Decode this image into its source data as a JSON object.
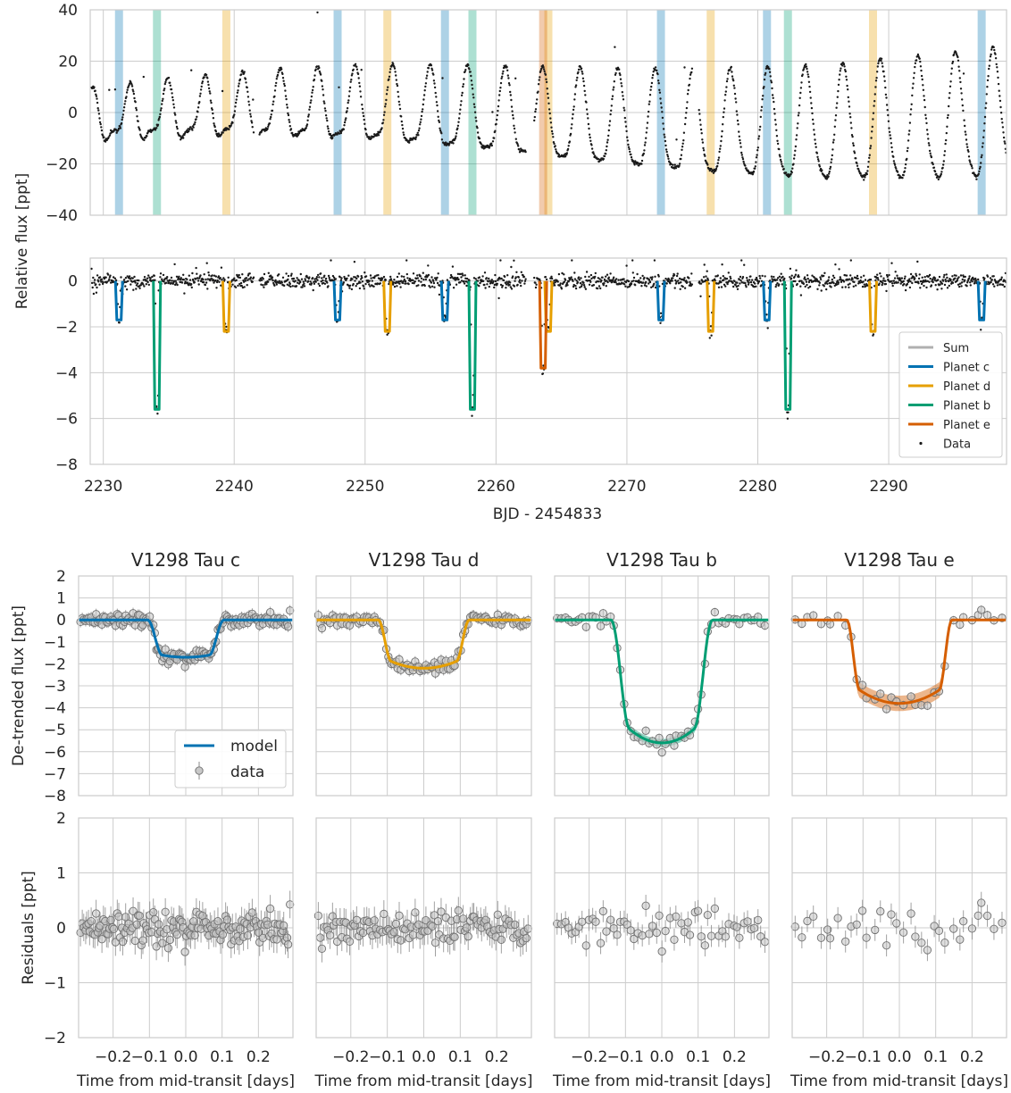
{
  "chart_data": [
    {
      "type": "scatter",
      "panel": "raw-light-curve",
      "ylabel": "Relative flux [ppt]",
      "xlim": [
        2229,
        2299
      ],
      "ylim": [
        -40,
        40
      ],
      "xticks": [
        "2230",
        "2240",
        "2250",
        "2260",
        "2270",
        "2280",
        "2290"
      ],
      "yticks": [
        "40",
        "20",
        "0",
        "−20",
        "−40"
      ],
      "transit_windows": [
        {
          "planet": "c",
          "x": [
            2231.2,
            2247.9,
            2256.1,
            2272.6,
            2280.7,
            2297.1
          ]
        },
        {
          "planet": "b",
          "x": [
            2234.1,
            2258.2,
            2282.3
          ]
        },
        {
          "planet": "d",
          "x": [
            2239.4,
            2251.7,
            2264.0,
            2276.4,
            2288.8
          ]
        },
        {
          "planet": "e",
          "x": [
            2263.6
          ]
        }
      ],
      "series": [
        {
          "name": "Data",
          "description": "quasi-periodic stellar variability, period about 2.9 d"
        }
      ]
    },
    {
      "type": "scatter",
      "panel": "detrended-light-curve",
      "xlabel": "BJD - 2454833",
      "xlim": [
        2229,
        2299
      ],
      "ylim": [
        -8,
        1
      ],
      "xticks": [
        "2230",
        "2240",
        "2250",
        "2260",
        "2270",
        "2280",
        "2290"
      ],
      "yticks": [
        "0",
        "−2",
        "−4",
        "−6",
        "−8"
      ],
      "legend": {
        "position": "lower-right",
        "entries": [
          "Sum",
          "Planet c",
          "Planet d",
          "Planet b",
          "Planet e",
          "Data"
        ]
      },
      "transits": [
        {
          "planet": "c",
          "depth": 1.7,
          "times": [
            2231.2,
            2247.9,
            2256.1,
            2272.6,
            2280.7,
            2297.1
          ]
        },
        {
          "planet": "b",
          "depth": 5.6,
          "times": [
            2234.1,
            2258.2,
            2282.3
          ]
        },
        {
          "planet": "d",
          "depth": 2.2,
          "times": [
            2239.4,
            2251.7,
            2264.0,
            2276.4,
            2288.8
          ]
        },
        {
          "planet": "e",
          "depth": 3.8,
          "times": [
            2263.6
          ]
        }
      ]
    },
    {
      "type": "scatter",
      "panel": "phase-folded-transits",
      "ylabel": "De-trended flux [ppt]",
      "ylim": [
        -8,
        2
      ],
      "yticks": [
        "2",
        "1",
        "0",
        "−1",
        "−2",
        "−3",
        "−4",
        "−5",
        "−6",
        "−7",
        "−8"
      ],
      "legend": {
        "position": "lower-right",
        "entries": [
          "model",
          "data"
        ]
      },
      "panels": [
        {
          "title": "V1298 Tau c",
          "planet": "c",
          "depth": 1.7,
          "t14": 0.21,
          "ingress": 0.04
        },
        {
          "title": "V1298 Tau d",
          "planet": "d",
          "depth": 2.2,
          "t14": 0.25,
          "ingress": 0.035
        },
        {
          "title": "V1298 Tau b",
          "planet": "b",
          "depth": 5.6,
          "t14": 0.28,
          "ingress": 0.05
        },
        {
          "title": "V1298 Tau e",
          "planet": "e",
          "depth": 3.8,
          "t14": 0.29,
          "ingress": 0.035
        }
      ]
    },
    {
      "type": "scatter",
      "panel": "residuals",
      "ylabel": "Residuals [ppt]",
      "xlabel": "Time from mid-transit [days]",
      "xlim": [
        -0.295,
        0.295
      ],
      "ylim": [
        -2,
        2
      ],
      "xticks": [
        "−0.2",
        "−0.1",
        "0.0",
        "0.1",
        "0.2"
      ],
      "yticks": [
        "2",
        "1",
        "0",
        "−1",
        "−2"
      ]
    }
  ],
  "colors": {
    "planet_c": "#0072b2",
    "planet_d": "#e69f00",
    "planet_b": "#009e73",
    "planet_e": "#d55e00",
    "sum": "#b0b0b0",
    "data": "#1a1a1a",
    "grid": "#cccccc"
  }
}
